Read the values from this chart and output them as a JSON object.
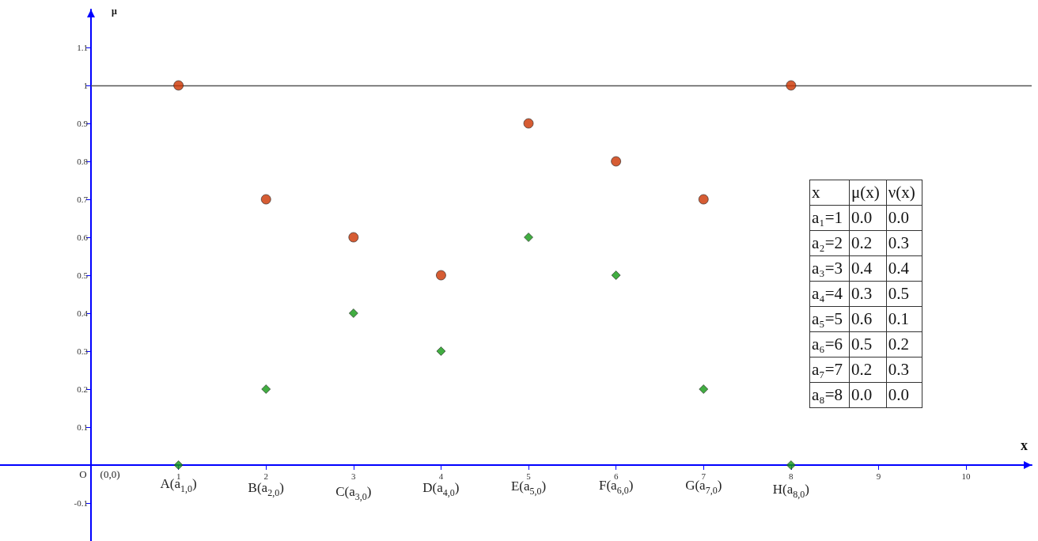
{
  "chart_data": {
    "type": "scatter",
    "xlabel": "x",
    "ylabel": "μ",
    "x": [
      1,
      2,
      3,
      4,
      5,
      6,
      7,
      8
    ],
    "series": [
      {
        "color": "#cc3300",
        "marker": "circle",
        "values": [
          1,
          0.7,
          0.6,
          0.5,
          0.9,
          0.8,
          0.7,
          1
        ]
      },
      {
        "color": "#119911",
        "marker": "diamond",
        "values": [
          0,
          0.2,
          0.4,
          0.3,
          0.6,
          0.5,
          0.2,
          0
        ]
      }
    ],
    "xlim": [
      -1.04,
      10.75
    ],
    "ylim": [
      -0.2,
      1.2
    ],
    "xticks": [
      1,
      2,
      3,
      4,
      5,
      6,
      7,
      8,
      9,
      10
    ],
    "yticks": [
      -0.1,
      0.1,
      0.2,
      0.3,
      0.4,
      0.5,
      0.6,
      0.7,
      0.8,
      0.9,
      1,
      1.1
    ],
    "ref_lines": [
      {
        "axis": "y",
        "value": 1,
        "color": "#555555"
      }
    ],
    "grid": false,
    "annotations": [
      "O",
      "(0,0)",
      "A(a$_{1,0}$)",
      "B(a$_{2,0}$)",
      "C(a$_{3,0}$)",
      "D(a$_{4,0}$)",
      "E(a$_{5,0}$)",
      "F(a$_{6,0}$)",
      "G(a$_{7,0}$)",
      "H(a$_{8,0}$)",
      "x",
      "μ(x)",
      "ν(x)",
      "a₁=1",
      "0.0",
      "0.0",
      "a₂=2",
      "0.2",
      "0.3",
      "a₃=3",
      "0.4",
      "0.4",
      "a₄=4",
      "0.3",
      "0.5",
      "a₅=5",
      "0.6",
      "0.1",
      "a₆=6",
      "0.5",
      "0.2",
      "a₇=7",
      "0.2",
      "0.3",
      "a₈=8",
      "0.0",
      "0.0"
    ]
  }
}
